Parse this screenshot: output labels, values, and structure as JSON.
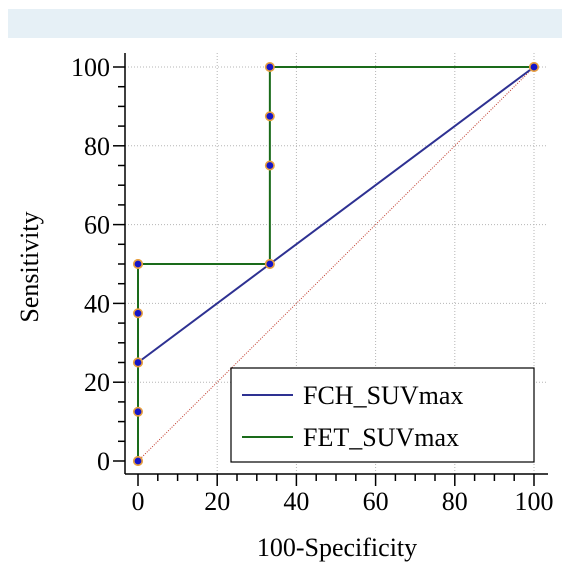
{
  "chart_data": {
    "type": "line",
    "xlabel": "100-Specificity",
    "ylabel": "Sensitivity",
    "xlim": [
      0,
      100
    ],
    "ylim": [
      0,
      100
    ],
    "xticks": [
      "0",
      "20",
      "40",
      "60",
      "80",
      "100"
    ],
    "yticks": [
      "0",
      "20",
      "40",
      "60",
      "80",
      "100"
    ],
    "grid": true,
    "legend_position": "bottom-right",
    "series": [
      {
        "name": "FCH_SUVmax",
        "color": "#2e3192",
        "x": [
          0,
          0,
          33.3,
          100
        ],
        "y": [
          0,
          25,
          50,
          100
        ]
      },
      {
        "name": "FET_SUVmax",
        "color": "#1a6b1a",
        "x": [
          0,
          0,
          0,
          0,
          0,
          0,
          33.3,
          33.3,
          33.3,
          33.3,
          100
        ],
        "y": [
          0,
          12.5,
          25,
          37.5,
          50,
          50,
          50,
          75,
          87.5,
          100,
          100
        ]
      }
    ],
    "reference_line": {
      "x": [
        0,
        100
      ],
      "y": [
        0,
        100
      ],
      "color": "#c0392b"
    },
    "marker_fill": "#1515c8",
    "marker_edge": "#e8a040"
  }
}
